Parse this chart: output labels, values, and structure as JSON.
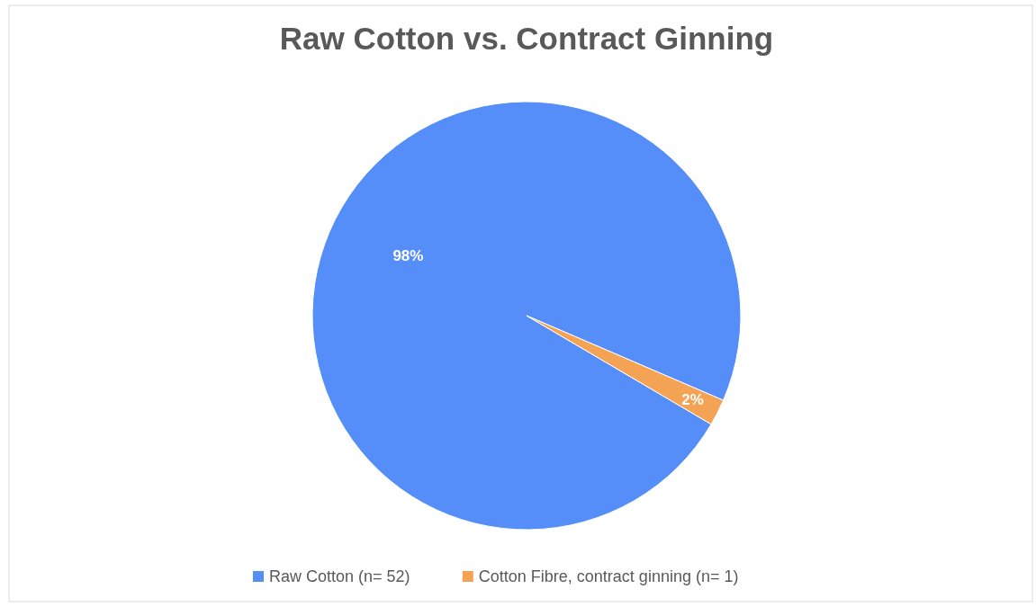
{
  "chart_data": {
    "type": "pie",
    "title": "Raw Cotton vs. Contract Ginning",
    "categories": [
      "Raw Cotton (n= 52)",
      "Cotton Fibre, contract ginning (n= 1)"
    ],
    "values": [
      98,
      2
    ],
    "colors": [
      "#558df9",
      "#f4a253"
    ],
    "value_labels": [
      "98%",
      "2%"
    ],
    "legend": "bottom"
  }
}
